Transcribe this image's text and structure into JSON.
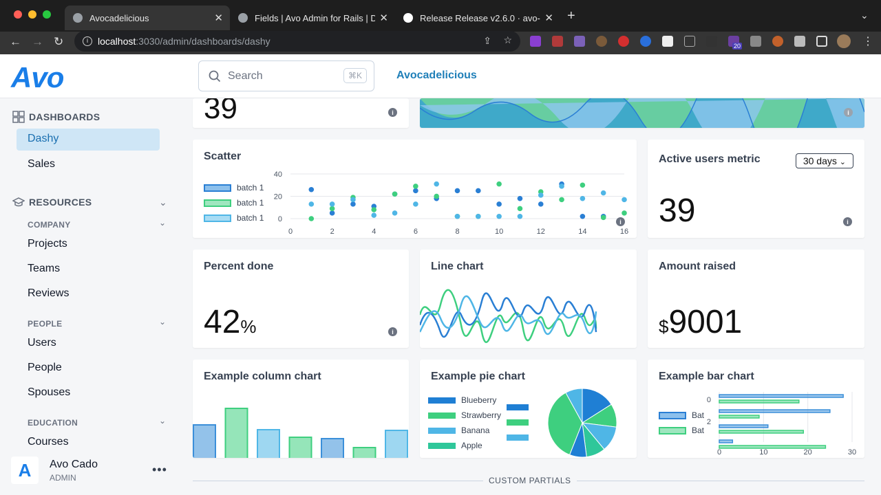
{
  "browser": {
    "tabs": [
      {
        "title": "Avocadelicious"
      },
      {
        "title": "Fields | Avo Admin for Rails | Do"
      },
      {
        "title": "Release Release v2.6.0 · avo-h"
      }
    ],
    "url_host": "localhost",
    "url_path": ":3030/admin/dashboards/dashy",
    "badge": "20"
  },
  "header": {
    "logo": "Avo",
    "search_placeholder": "Search",
    "search_shortcut": "⌘K",
    "app_name": "Avocadelicious"
  },
  "sidebar": {
    "dashboards_label": "DASHBOARDS",
    "dashboards": [
      "Dashy",
      "Sales"
    ],
    "resources_label": "RESOURCES",
    "company_label": "COMPANY",
    "company": [
      "Projects",
      "Teams",
      "Reviews"
    ],
    "people_label": "PEOPLE",
    "people": [
      "Users",
      "People",
      "Spouses"
    ],
    "education_label": "EDUCATION",
    "education": [
      "Courses"
    ]
  },
  "user": {
    "name": "Avo Cado",
    "role": "ADMIN"
  },
  "cards": {
    "top_metric_value": "39",
    "scatter_title": "Scatter",
    "active_users_title": "Active users metric",
    "active_users_range": "30 days",
    "active_users_value": "39",
    "percent_title": "Percent done",
    "percent_value": "42",
    "percent_unit": "%",
    "line_title": "Line chart",
    "amount_title": "Amount raised",
    "amount_prefix": "$",
    "amount_value": "9001",
    "column_title": "Example column chart",
    "pie_title": "Example pie chart",
    "bar_title": "Example bar chart"
  },
  "custom_partials_label": "CUSTOM PARTIALS",
  "colors": {
    "blue": "#3b8fd9",
    "green": "#3ecf7f",
    "cyan": "#4fb6e6",
    "accent": "#1f7fb8"
  },
  "chart_data": [
    {
      "type": "scatter",
      "title": "Scatter",
      "xlim": [
        0,
        16
      ],
      "ylim": [
        0,
        40
      ],
      "xticks": [
        "0",
        "2",
        "4",
        "6",
        "8",
        "10",
        "12",
        "14",
        "16"
      ],
      "yticks": [
        "40",
        "20",
        "0"
      ],
      "series": [
        {
          "name": "batch 1",
          "color": "#2a7fd4",
          "points": [
            [
              1,
              26
            ],
            [
              2,
              5
            ],
            [
              3,
              13
            ],
            [
              4,
              11
            ],
            [
              5,
              22
            ],
            [
              6,
              25
            ],
            [
              7,
              18
            ],
            [
              8,
              25
            ],
            [
              9,
              25
            ],
            [
              10,
              13
            ],
            [
              11,
              18
            ],
            [
              12,
              13
            ],
            [
              13,
              31
            ],
            [
              14,
              2
            ],
            [
              15,
              2
            ]
          ]
        },
        {
          "name": "batch 1",
          "color": "#3ecf7f",
          "points": [
            [
              1,
              0
            ],
            [
              2,
              9
            ],
            [
              3,
              19
            ],
            [
              4,
              8
            ],
            [
              5,
              22
            ],
            [
              6,
              29
            ],
            [
              7,
              20
            ],
            [
              8,
              2
            ],
            [
              9,
              2
            ],
            [
              10,
              31
            ],
            [
              11,
              9
            ],
            [
              12,
              24
            ],
            [
              13,
              17
            ],
            [
              14,
              30
            ],
            [
              15,
              1
            ],
            [
              16,
              5
            ]
          ]
        },
        {
          "name": "batch 1",
          "color": "#4fb6e6",
          "points": [
            [
              1,
              13
            ],
            [
              2,
              13
            ],
            [
              3,
              17
            ],
            [
              4,
              3
            ],
            [
              5,
              5
            ],
            [
              6,
              13
            ],
            [
              7,
              31
            ],
            [
              8,
              2
            ],
            [
              9,
              2
            ],
            [
              10,
              2
            ],
            [
              11,
              2
            ],
            [
              12,
              21
            ],
            [
              13,
              29
            ],
            [
              14,
              18
            ],
            [
              15,
              23
            ],
            [
              16,
              17
            ]
          ]
        }
      ]
    },
    {
      "type": "bar",
      "title": "Example column chart",
      "series": [
        {
          "color": "#3b8fd9",
          "values": [
            48
          ]
        },
        {
          "color": "#3ecf7f",
          "values": [
            72
          ]
        },
        {
          "color": "#4fb6e6",
          "values": [
            41
          ]
        },
        {
          "color": "#3ecf7f",
          "values": [
            30
          ]
        },
        {
          "color": "#3b8fd9",
          "values": [
            28
          ]
        },
        {
          "color": "#3ecf7f",
          "values": [
            15
          ]
        },
        {
          "color": "#4fb6e6",
          "values": [
            40
          ]
        }
      ]
    },
    {
      "type": "pie",
      "title": "Example pie chart",
      "legend": [
        "Blueberry",
        "Strawberry",
        "Banana",
        "Apple"
      ],
      "slices": [
        {
          "color": "#1f7fd4",
          "value": 16
        },
        {
          "color": "#3ecf7f",
          "value": 11
        },
        {
          "color": "#4fb6e6",
          "value": 12
        },
        {
          "color": "#2fc79a",
          "value": 9
        },
        {
          "color": "#1f7fd4",
          "value": 8
        },
        {
          "color": "#3ecf7f",
          "value": 36
        },
        {
          "color": "#4fb6e6",
          "value": 8
        }
      ]
    },
    {
      "type": "bar",
      "title": "Example bar chart",
      "orientation": "horizontal",
      "xlim": [
        0,
        30
      ],
      "xticks": [
        "0",
        "10",
        "20",
        "30"
      ],
      "yticks": [
        "0",
        "2"
      ],
      "legend": [
        "Bat",
        "Bat"
      ],
      "series": [
        {
          "color": "#3b8fd9",
          "values": [
            28,
            25,
            11,
            3
          ]
        },
        {
          "color": "#3ecf7f",
          "values": [
            18,
            9,
            19,
            24
          ]
        }
      ]
    }
  ]
}
